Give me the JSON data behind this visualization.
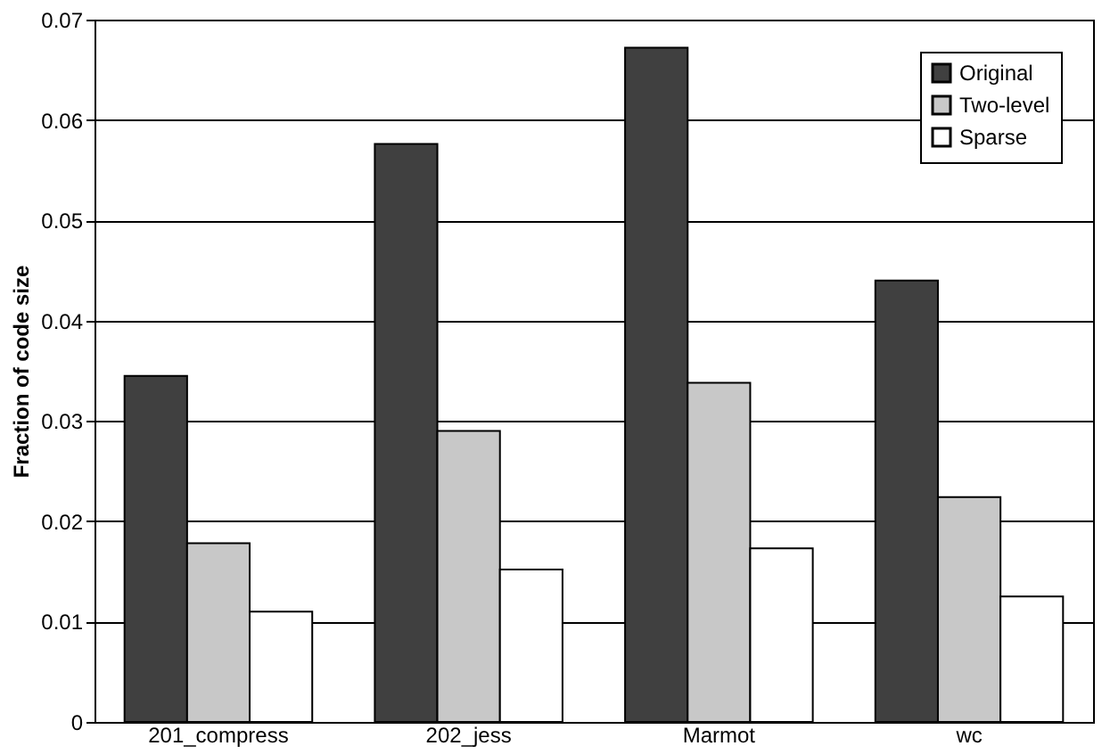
{
  "chart_data": {
    "type": "bar",
    "ylabel": "Fraction of code size",
    "categories": [
      "201_compress",
      "202_jess",
      "Marmot",
      "wc"
    ],
    "series": [
      {
        "name": "Original",
        "color": "#404040",
        "values": [
          0.0345,
          0.0576,
          0.0672,
          0.044
        ]
      },
      {
        "name": "Two-level",
        "color": "#c8c8c8",
        "values": [
          0.0178,
          0.029,
          0.0338,
          0.0224
        ]
      },
      {
        "name": "Sparse",
        "color": "#ffffff",
        "values": [
          0.011,
          0.0152,
          0.0173,
          0.0125
        ]
      }
    ],
    "ylim": [
      0,
      0.07
    ],
    "yticks": [
      0,
      0.01,
      0.02,
      0.03,
      0.04,
      0.05,
      0.06,
      0.07
    ],
    "grid": "y",
    "legend": "top right"
  }
}
